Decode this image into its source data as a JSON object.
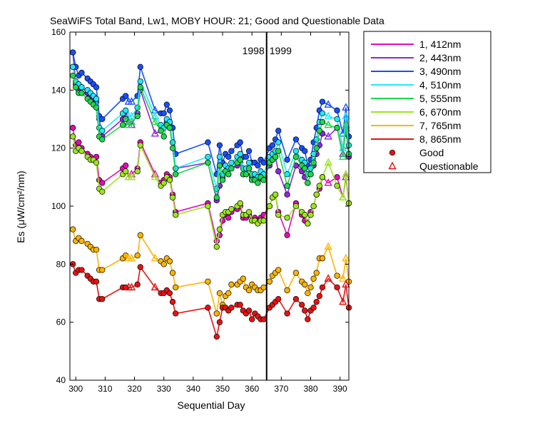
{
  "chart_data": {
    "type": "line",
    "title": "SeaWiFS Total Band,  Lw1, MOBY HOUR: 21;  Good and Questionable Data",
    "xlabel": "Sequential Day",
    "ylabel": "Es (μW/cm²/nm)",
    "xlim": [
      298,
      393
    ],
    "ylim": [
      40,
      160
    ],
    "xticks": [
      300,
      310,
      320,
      330,
      340,
      350,
      360,
      370,
      380,
      390
    ],
    "yticks": [
      40,
      60,
      80,
      100,
      120,
      140,
      160
    ],
    "grid": false,
    "legend_position": "outside-right",
    "divider": {
      "x": 365,
      "left_label": "1998",
      "right_label": "1999"
    },
    "x": [
      299,
      300,
      301,
      302,
      304,
      305,
      306,
      307,
      308,
      309,
      316,
      317,
      318,
      319,
      321,
      322,
      327,
      329,
      330,
      331,
      332,
      333,
      334,
      345,
      348,
      349,
      350,
      351,
      352,
      353,
      355,
      356,
      357,
      358,
      359,
      360,
      361,
      362,
      363,
      364,
      366,
      367,
      368,
      369,
      372,
      375,
      377,
      378,
      379,
      380,
      381,
      382,
      383,
      384,
      386,
      389,
      391,
      392,
      393
    ],
    "questionable_x": [
      318,
      319,
      327,
      386,
      391,
      392
    ],
    "series": [
      {
        "name": "1, 412nm",
        "color": "#e60ab8",
        "values": [
          127,
          121,
          122,
          120,
          118,
          117,
          116,
          117,
          109,
          108,
          113,
          114,
          110,
          111,
          113,
          122,
          111,
          108,
          109,
          111,
          110,
          104,
          98,
          101,
          88,
          90,
          95,
          97,
          96,
          98,
          99,
          100,
          96,
          96,
          97,
          95,
          96,
          95,
          96,
          97,
          100,
          103,
          104,
          98,
          90,
          101,
          97,
          95,
          94,
          98,
          100,
          104,
          106,
          110,
          108,
          110,
          103,
          110,
          101
        ]
      },
      {
        "name": "2, 443nm",
        "color": "#8f24e6",
        "values": [
          153,
          142,
          140,
          141,
          139,
          138,
          137,
          136,
          130,
          124,
          130,
          131,
          129,
          128,
          132,
          140,
          125,
          126,
          127,
          129,
          128,
          122,
          113,
          115,
          102,
          107,
          110,
          112,
          111,
          113,
          114,
          115,
          111,
          111,
          113,
          110,
          110,
          109,
          110,
          110,
          114,
          116,
          117,
          112,
          104,
          114,
          112,
          110,
          108,
          111,
          114,
          118,
          121,
          125,
          124,
          127,
          118,
          127,
          117
        ]
      },
      {
        "name": "3, 490nm",
        "color": "#1850ff",
        "values": [
          153,
          148,
          145,
          146,
          144,
          143,
          142,
          141,
          131,
          130,
          137,
          138,
          136,
          136,
          138,
          148,
          133,
          132,
          132,
          135,
          133,
          127,
          118,
          122,
          111,
          121,
          115,
          118,
          117,
          119,
          121,
          122,
          117,
          117,
          119,
          115,
          115,
          114,
          116,
          115,
          120,
          121,
          123,
          126,
          116,
          123,
          120,
          119,
          114,
          116,
          122,
          127,
          133,
          136,
          135,
          133,
          125,
          134,
          124
        ]
      },
      {
        "name": "4, 510nm",
        "color": "#20e8ff",
        "values": [
          148,
          143,
          142,
          141,
          140,
          139,
          138,
          137,
          127,
          126,
          132,
          133,
          131,
          131,
          134,
          143,
          131,
          128,
          127,
          130,
          129,
          122,
          113,
          117,
          106,
          117,
          111,
          114,
          113,
          115,
          117,
          118,
          113,
          113,
          115,
          111,
          111,
          110,
          112,
          111,
          117,
          118,
          119,
          122,
          111,
          119,
          116,
          115,
          111,
          113,
          118,
          123,
          129,
          132,
          131,
          130,
          120,
          131,
          121
        ]
      },
      {
        "name": "5, 555nm",
        "color": "#20d84a",
        "values": [
          145,
          141,
          139,
          139,
          137,
          136,
          135,
          134,
          124,
          123,
          128,
          130,
          128,
          129,
          131,
          141,
          129,
          126,
          124,
          128,
          127,
          120,
          111,
          115,
          103,
          114,
          109,
          112,
          111,
          113,
          115,
          116,
          111,
          111,
          113,
          109,
          109,
          108,
          110,
          109,
          115,
          116,
          117,
          119,
          107,
          117,
          114,
          113,
          108,
          111,
          115,
          120,
          126,
          129,
          128,
          127,
          117,
          128,
          118
        ]
      },
      {
        "name": "6, 670nm",
        "color": "#9ae61c",
        "values": [
          124,
          119,
          120,
          119,
          117,
          116,
          116,
          115,
          106,
          105,
          111,
          112,
          110,
          110,
          112,
          121,
          110,
          107,
          108,
          110,
          109,
          103,
          97,
          100,
          86,
          92,
          97,
          98,
          98,
          99,
          100,
          101,
          97,
          97,
          98,
          95,
          95,
          94,
          95,
          95,
          100,
          103,
          104,
          97,
          96,
          100,
          98,
          97,
          94,
          97,
          100,
          104,
          107,
          110,
          115,
          107,
          103,
          111,
          101
        ]
      },
      {
        "name": "7, 765nm",
        "color": "#ffb400",
        "values": [
          92,
          88,
          89,
          88,
          87,
          86,
          85,
          85,
          78,
          78,
          82,
          83,
          82,
          82,
          83,
          90,
          82,
          81,
          80,
          82,
          81,
          77,
          72,
          74,
          63,
          70,
          66,
          69,
          70,
          73,
          73,
          74,
          75,
          72,
          71,
          73,
          72,
          71,
          71,
          72,
          74,
          76,
          77,
          78,
          71,
          77,
          74,
          73,
          70,
          72,
          75,
          77,
          82,
          82,
          86,
          76,
          75,
          82,
          74
        ]
      },
      {
        "name": "8, 865nm",
        "color": "#e81212",
        "values": [
          80,
          77,
          78,
          78,
          76,
          75,
          74,
          74,
          68,
          68,
          72,
          72,
          72,
          72,
          73,
          79,
          72,
          70,
          70,
          71,
          70,
          67,
          63,
          65,
          55,
          60,
          65,
          65,
          64,
          65,
          66,
          66,
          64,
          63,
          64,
          61,
          63,
          62,
          61,
          61,
          65,
          66,
          67,
          68,
          63,
          68,
          66,
          64,
          61,
          64,
          65,
          67,
          69,
          72,
          75,
          72,
          67,
          73,
          65
        ]
      }
    ],
    "marker_legend": [
      {
        "label": "Good",
        "marker": "filled-circle"
      },
      {
        "label": "Questionable",
        "marker": "open-triangle"
      }
    ]
  }
}
